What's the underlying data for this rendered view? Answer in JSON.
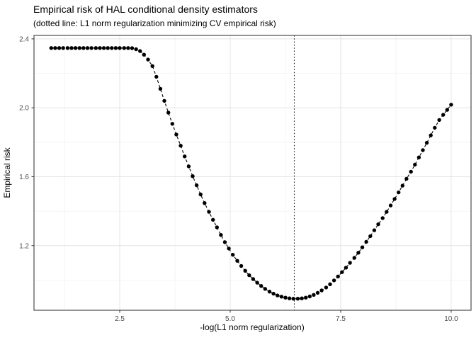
{
  "chart_data": {
    "type": "scatter",
    "title": "Empirical risk of HAL conditional density estimators",
    "subtitle": "(dotted line: L1 norm regularization minimizing CV empirical risk)",
    "xlabel": "-log(L1 norm regularization)",
    "ylabel": "Empirical risk",
    "xlim": [
      0.56,
      10.45
    ],
    "ylim": [
      0.825,
      2.42
    ],
    "x_breaks": [
      2.5,
      5.0,
      7.5,
      10.0
    ],
    "x_tick_labels": [
      "2.5",
      "5.0",
      "7.5",
      "10.0"
    ],
    "x_minor_breaks": [
      1.25,
      3.75,
      6.25,
      8.75
    ],
    "y_breaks": [
      2.4,
      2.0,
      1.6,
      1.2
    ],
    "y_tick_labels": [
      "2.4",
      "2.0",
      "1.6",
      "1.2"
    ],
    "y_minor_breaks": [
      2.2,
      1.8,
      1.4,
      1.0
    ],
    "grid": true,
    "legend": "none",
    "vline_x": 6.45,
    "vline_style": "dotted",
    "series_style": {
      "point_color": "#000000",
      "line_color": "#000000",
      "line_dash": "dashed"
    },
    "points": [
      [
        0.95,
        2.347
      ],
      [
        1.04,
        2.347
      ],
      [
        1.13,
        2.347
      ],
      [
        1.22,
        2.347
      ],
      [
        1.32,
        2.347
      ],
      [
        1.41,
        2.347
      ],
      [
        1.5,
        2.347
      ],
      [
        1.59,
        2.347
      ],
      [
        1.68,
        2.347
      ],
      [
        1.77,
        2.347
      ],
      [
        1.86,
        2.347
      ],
      [
        1.96,
        2.347
      ],
      [
        2.05,
        2.347
      ],
      [
        2.14,
        2.347
      ],
      [
        2.23,
        2.347
      ],
      [
        2.32,
        2.347
      ],
      [
        2.41,
        2.347
      ],
      [
        2.5,
        2.347
      ],
      [
        2.6,
        2.347
      ],
      [
        2.69,
        2.347
      ],
      [
        2.78,
        2.346
      ],
      [
        2.87,
        2.34
      ],
      [
        2.96,
        2.329
      ],
      [
        3.05,
        2.308
      ],
      [
        3.14,
        2.28
      ],
      [
        3.24,
        2.242
      ],
      [
        3.33,
        2.18
      ],
      [
        3.42,
        2.11
      ],
      [
        3.51,
        2.04
      ],
      [
        3.6,
        1.972
      ],
      [
        3.69,
        1.907
      ],
      [
        3.78,
        1.845
      ],
      [
        3.88,
        1.78
      ],
      [
        3.97,
        1.718
      ],
      [
        4.06,
        1.66
      ],
      [
        4.15,
        1.603
      ],
      [
        4.24,
        1.55
      ],
      [
        4.33,
        1.497
      ],
      [
        4.42,
        1.447
      ],
      [
        4.52,
        1.396
      ],
      [
        4.61,
        1.35
      ],
      [
        4.7,
        1.306
      ],
      [
        4.79,
        1.262
      ],
      [
        4.88,
        1.22
      ],
      [
        4.97,
        1.183
      ],
      [
        5.06,
        1.147
      ],
      [
        5.16,
        1.112
      ],
      [
        5.25,
        1.082
      ],
      [
        5.34,
        1.054
      ],
      [
        5.43,
        1.028
      ],
      [
        5.52,
        1.006
      ],
      [
        5.61,
        0.985
      ],
      [
        5.7,
        0.966
      ],
      [
        5.79,
        0.949
      ],
      [
        5.89,
        0.933
      ],
      [
        5.98,
        0.921
      ],
      [
        6.07,
        0.911
      ],
      [
        6.16,
        0.904
      ],
      [
        6.25,
        0.898
      ],
      [
        6.34,
        0.894
      ],
      [
        6.43,
        0.892
      ],
      [
        6.53,
        0.892
      ],
      [
        6.62,
        0.894
      ],
      [
        6.71,
        0.898
      ],
      [
        6.8,
        0.905
      ],
      [
        6.89,
        0.914
      ],
      [
        6.98,
        0.926
      ],
      [
        7.07,
        0.94
      ],
      [
        7.17,
        0.957
      ],
      [
        7.26,
        0.976
      ],
      [
        7.35,
        0.998
      ],
      [
        7.44,
        1.021
      ],
      [
        7.53,
        1.046
      ],
      [
        7.62,
        1.072
      ],
      [
        7.71,
        1.1
      ],
      [
        7.81,
        1.129
      ],
      [
        7.9,
        1.159
      ],
      [
        7.99,
        1.19
      ],
      [
        8.08,
        1.222
      ],
      [
        8.17,
        1.255
      ],
      [
        8.26,
        1.289
      ],
      [
        8.35,
        1.324
      ],
      [
        8.45,
        1.36
      ],
      [
        8.54,
        1.396
      ],
      [
        8.63,
        1.433
      ],
      [
        8.72,
        1.471
      ],
      [
        8.81,
        1.509
      ],
      [
        8.9,
        1.548
      ],
      [
        8.99,
        1.588
      ],
      [
        9.09,
        1.629
      ],
      [
        9.18,
        1.67
      ],
      [
        9.27,
        1.712
      ],
      [
        9.36,
        1.754
      ],
      [
        9.45,
        1.797
      ],
      [
        9.54,
        1.84
      ],
      [
        9.63,
        1.884
      ],
      [
        9.73,
        1.929
      ],
      [
        9.82,
        1.959
      ],
      [
        9.91,
        1.988
      ],
      [
        10.0,
        2.018
      ]
    ]
  },
  "style": {
    "background": "#ffffff",
    "major_grid_color": "#e4e4e4",
    "minor_grid_color": "#f2f2f2",
    "panel_border_color": "#4d4d4d",
    "tick_color": "#333333",
    "tick_label_color": "#4d4d4d",
    "text_color": "#000000",
    "vline_color": "#000000"
  }
}
